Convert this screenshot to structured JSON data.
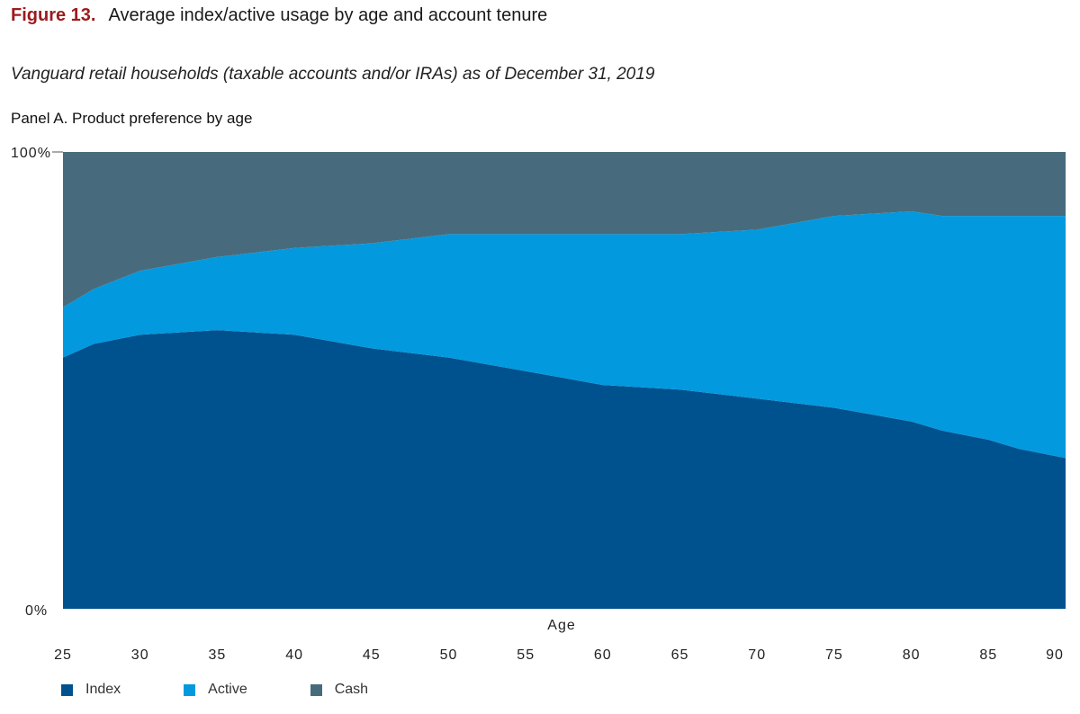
{
  "header": {
    "figure_number": "Figure 13.",
    "title": "Average index/active usage by age and account tenure",
    "subtitle": "Vanguard retail households (taxable accounts and/or IRAs) as of December 31, 2019",
    "panel_title": "Panel A. Product preference by age"
  },
  "colors": {
    "index": "#00528f",
    "active": "#0399de",
    "cash": "#476b7d",
    "title_accent": "#9b1b1e"
  },
  "chart_data": {
    "type": "area",
    "stacked": true,
    "xlabel": "Age",
    "ylabel": "",
    "xlim": [
      25,
      90
    ],
    "ylim": [
      0,
      100
    ],
    "x_ticks": [
      25,
      30,
      35,
      40,
      45,
      50,
      55,
      60,
      65,
      70,
      75,
      80,
      85,
      90
    ],
    "y_tick_labels": [
      "0%",
      "100%"
    ],
    "x": [
      25,
      27,
      30,
      35,
      40,
      45,
      50,
      55,
      60,
      65,
      70,
      75,
      80,
      82,
      85,
      87,
      90
    ],
    "series": [
      {
        "name": "Index",
        "values": [
          55,
          58,
          60,
          61,
          60,
          57,
          55,
          52,
          49,
          48,
          46,
          44,
          41,
          39,
          37,
          35,
          33
        ]
      },
      {
        "name": "Active",
        "values": [
          11,
          12,
          14,
          16,
          19,
          23,
          27,
          30,
          33,
          34,
          37,
          42,
          46,
          47,
          49,
          51,
          53
        ]
      },
      {
        "name": "Cash",
        "values": [
          34,
          30,
          26,
          23,
          21,
          20,
          18,
          18,
          18,
          18,
          17,
          14,
          13,
          14,
          14,
          14,
          14
        ]
      }
    ],
    "legend": [
      "Index",
      "Active",
      "Cash"
    ],
    "legend_position": "bottom-left",
    "grid": false
  }
}
